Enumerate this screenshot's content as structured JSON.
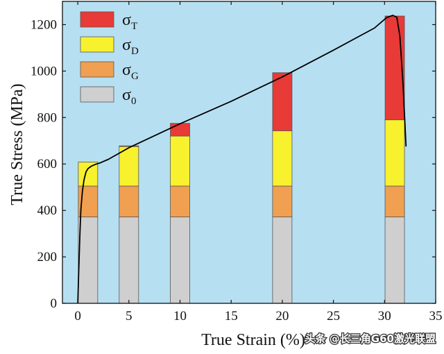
{
  "chart_data": {
    "type": "bar",
    "xlabel": "True Strain (%)",
    "ylabel": "True Stress (MPa)",
    "xlim": [
      -1.5,
      35
    ],
    "ylim": [
      0,
      1300
    ],
    "xticks": [
      0,
      5,
      10,
      15,
      20,
      25,
      30,
      35
    ],
    "yticks": [
      0,
      200,
      400,
      600,
      800,
      1000,
      1200
    ],
    "background": "#b7dff2",
    "categories": [
      1,
      5,
      10,
      20,
      31
    ],
    "series": [
      {
        "name": "σ0",
        "base": "σ",
        "sub": "0",
        "color": "#cfcfcf",
        "values": [
          372,
          372,
          372,
          372,
          372
        ]
      },
      {
        "name": "σG",
        "base": "σ",
        "sub": "G",
        "color": "#f0a050",
        "values": [
          133,
          133,
          133,
          133,
          133
        ]
      },
      {
        "name": "σD",
        "base": "σ",
        "sub": "D",
        "color": "#f7f12e",
        "values": [
          103,
          170,
          215,
          238,
          285
        ]
      },
      {
        "name": "σT",
        "base": "σ",
        "sub": "T",
        "color": "#e83a36",
        "values": [
          0,
          3,
          55,
          250,
          447
        ]
      }
    ],
    "curve": {
      "color": "#000000",
      "x": [
        0,
        0.1,
        0.2,
        0.3,
        0.45,
        0.6,
        0.8,
        1.0,
        1.3,
        1.7,
        2.2,
        3,
        5,
        10,
        15,
        20,
        25,
        29,
        30.2,
        30.8,
        31.2,
        31.5,
        31.8,
        32.1
      ],
      "y": [
        0,
        150,
        290,
        400,
        480,
        530,
        565,
        580,
        590,
        598,
        605,
        620,
        670,
        773,
        870,
        975,
        1090,
        1185,
        1230,
        1240,
        1232,
        1150,
        950,
        675
      ]
    },
    "legend_position": "top-left"
  },
  "watermark": "头条 @长三角G60激光联盟"
}
